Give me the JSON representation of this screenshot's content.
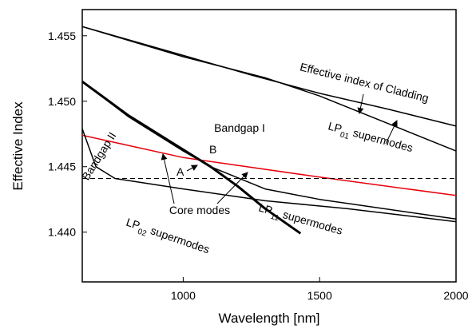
{
  "chart_data": {
    "type": "line",
    "x_label": "Wavelength [nm]",
    "y_label": "Effective Index",
    "xlim": [
      630,
      2000
    ],
    "ylim": [
      1.4362,
      1.457
    ],
    "xticks": [
      1000,
      1500,
      2000
    ],
    "yticks": [
      {
        "value": 1.44,
        "label": "1.440"
      },
      {
        "value": 1.445,
        "label": "1.445"
      },
      {
        "value": 1.45,
        "label": "1.450"
      },
      {
        "value": 1.455,
        "label": "1.455"
      }
    ],
    "series": [
      {
        "color": "#000000",
        "line_width": 1.5,
        "x": [
          630,
          1000,
          1250,
          1500,
          1750,
          2000
        ],
        "values": [
          1.4557,
          1.4535,
          1.452,
          1.4506,
          1.4494,
          1.4481
        ]
      },
      {
        "color": "#000000",
        "line_width": 1.5,
        "x": [
          630,
          1000,
          1300,
          1500,
          1750,
          2000
        ],
        "values": [
          1.4557,
          1.4534,
          1.4518,
          1.4504,
          1.4483,
          1.4462
        ]
      },
      {
        "color": "#e8000b",
        "line_width": 1.5,
        "x": [
          630,
          1000,
          1500,
          2000
        ],
        "values": [
          1.4474,
          1.4457,
          1.4442,
          1.4428
        ]
      },
      {
        "color": "#000000",
        "line_width": 1,
        "style": "dashed",
        "x": [
          630,
          2000
        ],
        "values": [
          1.4441,
          1.4441
        ]
      },
      {
        "color": "#000000",
        "line_width": 3,
        "x": [
          630,
          800,
          1000,
          1100,
          1200,
          1300,
          1430
        ],
        "values": [
          1.4515,
          1.4489,
          1.4463,
          1.445,
          1.4435,
          1.4418,
          1.4399
        ]
      },
      {
        "color": "#000000",
        "line_width": 1.5,
        "x": [
          630,
          800,
          1000,
          1100,
          1300,
          1500,
          2000
        ],
        "values": [
          1.4515,
          1.4488,
          1.4462,
          1.445,
          1.4433,
          1.4425,
          1.441
        ]
      },
      {
        "color": "#000000",
        "line_width": 1.5,
        "x": [
          630,
          680,
          750,
          1000,
          1300,
          1600,
          2000
        ],
        "values": [
          1.4479,
          1.445,
          1.4441,
          1.4433,
          1.4424,
          1.4418,
          1.4408
        ]
      }
    ],
    "annotations": {
      "cladding": "Effective index of Cladding",
      "lp01": {
        "text": "LP",
        "sub": "01",
        "after": "supermodes"
      },
      "bandgap1": "Bandgap I",
      "bandgap2": "Bandgap II",
      "b": "B",
      "a": "A",
      "core": "Core modes",
      "lp11": {
        "text": "LP",
        "sub": "11",
        "after": "supermodes"
      },
      "lp02": {
        "text": "LP",
        "sub": "02",
        "after": "supermodes"
      }
    }
  }
}
